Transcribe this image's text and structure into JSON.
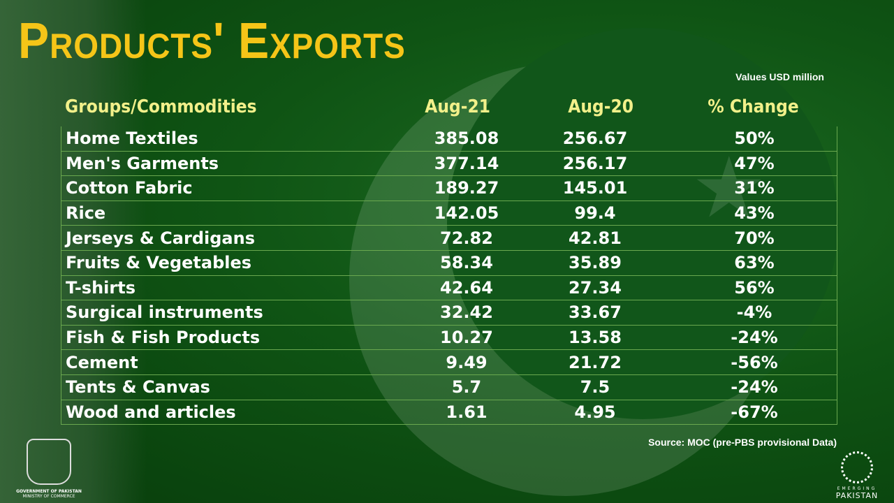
{
  "title": "Products' Exports",
  "units_note": "Values USD million",
  "source": "Source: MOC (pre-PBS provisional Data)",
  "colors": {
    "title": "#f5c518",
    "header": "#f2f08a",
    "grid": "#6aa84f",
    "background": "#0f5414"
  },
  "logos": {
    "left": [
      "GOVERNMENT OF PAKISTAN",
      "MINISTRY OF COMMERCE"
    ],
    "right": [
      "EMERGING",
      "PAKISTAN"
    ]
  },
  "chart_data": {
    "type": "table",
    "title": "Products' Exports",
    "columns": [
      "Groups/Commodities",
      "Aug-21",
      "Aug-20",
      "% Change"
    ],
    "rows": [
      [
        "Home Textiles",
        "385.08",
        "256.67",
        "50%"
      ],
      [
        "Men's Garments",
        "377.14",
        "256.17",
        "47%"
      ],
      [
        "Cotton Fabric",
        "189.27",
        "145.01",
        "31%"
      ],
      [
        "Rice",
        "142.05",
        "99.4",
        "43%"
      ],
      [
        "Jerseys & Cardigans",
        "72.82",
        "42.81",
        "70%"
      ],
      [
        "Fruits & Vegetables",
        "58.34",
        "35.89",
        "63%"
      ],
      [
        "T-shirts",
        "42.64",
        "27.34",
        "56%"
      ],
      [
        "Surgical instruments",
        "32.42",
        "33.67",
        "-4%"
      ],
      [
        "Fish & Fish Products",
        "10.27",
        "13.58",
        "-24%"
      ],
      [
        "Cement",
        "9.49",
        "21.72",
        "-56%"
      ],
      [
        "Tents & Canvas",
        "5.7",
        "7.5",
        "-24%"
      ],
      [
        "Wood and articles",
        "1.61",
        "4.95",
        "-67%"
      ]
    ]
  }
}
